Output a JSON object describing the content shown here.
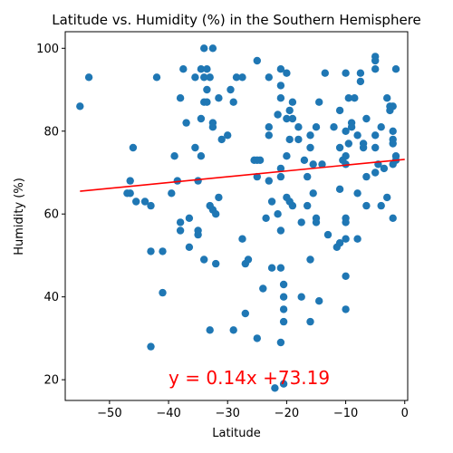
{
  "chart_data": {
    "type": "scatter",
    "title": "Latitude vs. Humidity (%) in the Southern Hemisphere",
    "xlabel": "Latitude",
    "ylabel": "Humidity (%)",
    "xlim": [
      -57.5,
      0.5
    ],
    "ylim": [
      15,
      104
    ],
    "xticks": [
      -50,
      -40,
      -30,
      -20,
      -10,
      0
    ],
    "yticks": [
      20,
      40,
      60,
      80,
      100
    ],
    "grid": false,
    "point_color": "#1f77b4",
    "regression": {
      "slope": 0.14,
      "intercept": 73.19,
      "x_range": [
        -55,
        0
      ],
      "color": "#ff0000",
      "label": "y = 0.14x +73.19",
      "label_at": [
        -40,
        20.5
      ]
    },
    "points": [
      [
        -55,
        86
      ],
      [
        -53.5,
        93
      ],
      [
        -46.5,
        68
      ],
      [
        -46.5,
        65
      ],
      [
        -46,
        76
      ],
      [
        -45.5,
        63
      ],
      [
        -47,
        65
      ],
      [
        -44,
        63
      ],
      [
        -43,
        62
      ],
      [
        -43,
        51
      ],
      [
        -43,
        28
      ],
      [
        -42,
        93
      ],
      [
        -41,
        51
      ],
      [
        -41,
        41
      ],
      [
        -39.5,
        65
      ],
      [
        -39,
        74
      ],
      [
        -38.5,
        68
      ],
      [
        -38,
        58
      ],
      [
        -38,
        56
      ],
      [
        -38,
        88
      ],
      [
        -37.5,
        95
      ],
      [
        -37,
        82
      ],
      [
        -36.5,
        59
      ],
      [
        -36.5,
        52
      ],
      [
        -35.5,
        93
      ],
      [
        -35.5,
        76
      ],
      [
        -35,
        68
      ],
      [
        -35,
        55
      ],
      [
        -35,
        56
      ],
      [
        -34.5,
        95
      ],
      [
        -34.5,
        83
      ],
      [
        -34.5,
        74
      ],
      [
        -34,
        100
      ],
      [
        -34,
        93
      ],
      [
        -34,
        87
      ],
      [
        -34,
        49
      ],
      [
        -33.5,
        95
      ],
      [
        -33.5,
        90
      ],
      [
        -33.5,
        87
      ],
      [
        -33,
        93
      ],
      [
        -33,
        62
      ],
      [
        -33,
        32
      ],
      [
        -32.5,
        100
      ],
      [
        -32.5,
        82
      ],
      [
        -32.5,
        81
      ],
      [
        -32.5,
        61
      ],
      [
        -32,
        60
      ],
      [
        -32,
        48
      ],
      [
        -31.5,
        88
      ],
      [
        -31.5,
        64
      ],
      [
        -31,
        78
      ],
      [
        -30,
        79
      ],
      [
        -29.5,
        90
      ],
      [
        -29,
        87
      ],
      [
        -29,
        32
      ],
      [
        -28.5,
        93
      ],
      [
        -27.5,
        93
      ],
      [
        -27.5,
        54
      ],
      [
        -27,
        48
      ],
      [
        -27,
        36
      ],
      [
        -26.5,
        49
      ],
      [
        -25.5,
        73
      ],
      [
        -25,
        97
      ],
      [
        -25,
        73
      ],
      [
        -25,
        69
      ],
      [
        -25,
        30
      ],
      [
        -24.5,
        73
      ],
      [
        -24,
        42
      ],
      [
        -23.5,
        59
      ],
      [
        -23,
        93
      ],
      [
        -23,
        81
      ],
      [
        -23,
        79
      ],
      [
        -23,
        68
      ],
      [
        -22.5,
        63
      ],
      [
        -22.5,
        47
      ],
      [
        -22,
        18
      ],
      [
        -21.5,
        84
      ],
      [
        -21.5,
        60
      ],
      [
        -21,
        95
      ],
      [
        -21,
        91
      ],
      [
        -21,
        88
      ],
      [
        -21,
        71
      ],
      [
        -21,
        69
      ],
      [
        -21,
        56
      ],
      [
        -21,
        47
      ],
      [
        -21,
        29
      ],
      [
        -20.5,
        19
      ],
      [
        -20.5,
        43
      ],
      [
        -20.5,
        37
      ],
      [
        -20.5,
        34
      ],
      [
        -20.5,
        40
      ],
      [
        -20,
        94
      ],
      [
        -20,
        83
      ],
      [
        -20,
        74
      ],
      [
        -20,
        64
      ],
      [
        -19.5,
        85
      ],
      [
        -19.5,
        78
      ],
      [
        -19.5,
        63
      ],
      [
        -19,
        87
      ],
      [
        -19,
        83
      ],
      [
        -19,
        62
      ],
      [
        -18,
        81
      ],
      [
        -18,
        78
      ],
      [
        -17.5,
        58
      ],
      [
        -17.5,
        40
      ],
      [
        -17,
        73
      ],
      [
        -16.5,
        69
      ],
      [
        -16.5,
        62
      ],
      [
        -16,
        79
      ],
      [
        -16,
        76
      ],
      [
        -16,
        49
      ],
      [
        -16,
        34
      ],
      [
        -15.5,
        72
      ],
      [
        -15.5,
        65
      ],
      [
        -15,
        81
      ],
      [
        -15,
        59
      ],
      [
        -15,
        58
      ],
      [
        -14.5,
        87
      ],
      [
        -14.5,
        39
      ],
      [
        -14,
        72
      ],
      [
        -13.5,
        94
      ],
      [
        -13,
        55
      ],
      [
        -12,
        81
      ],
      [
        -11.5,
        52
      ],
      [
        -11,
        85
      ],
      [
        -11,
        76
      ],
      [
        -11,
        66
      ],
      [
        -11,
        53
      ],
      [
        -10.5,
        73
      ],
      [
        -10,
        94
      ],
      [
        -10,
        80
      ],
      [
        -10,
        74
      ],
      [
        -10,
        72
      ],
      [
        -10,
        59
      ],
      [
        -10,
        58
      ],
      [
        -10,
        54
      ],
      [
        -10,
        45
      ],
      [
        -10,
        37
      ],
      [
        -9.5,
        77
      ],
      [
        -9.5,
        88
      ],
      [
        -9,
        82
      ],
      [
        -9,
        81
      ],
      [
        -8.5,
        88
      ],
      [
        -8,
        79
      ],
      [
        -8,
        65
      ],
      [
        -8,
        54
      ],
      [
        -7.5,
        94
      ],
      [
        -7.5,
        92
      ],
      [
        -7,
        77
      ],
      [
        -7,
        76
      ],
      [
        -6.5,
        83
      ],
      [
        -6.5,
        69
      ],
      [
        -6.5,
        62
      ],
      [
        -5,
        98
      ],
      [
        -5,
        97
      ],
      [
        -5,
        95
      ],
      [
        -5,
        76
      ],
      [
        -5,
        79
      ],
      [
        -5,
        70
      ],
      [
        -4.5,
        72
      ],
      [
        -4,
        81
      ],
      [
        -4,
        62
      ],
      [
        -3.5,
        71
      ],
      [
        -3,
        88
      ],
      [
        -3,
        64
      ],
      [
        -2.5,
        86
      ],
      [
        -2.5,
        85
      ],
      [
        -2,
        86
      ],
      [
        -2,
        80
      ],
      [
        -2,
        78
      ],
      [
        -2,
        77
      ],
      [
        -2,
        72
      ],
      [
        -2,
        59
      ],
      [
        -1.5,
        95
      ],
      [
        -1.5,
        74
      ],
      [
        -1.5,
        73
      ]
    ]
  }
}
